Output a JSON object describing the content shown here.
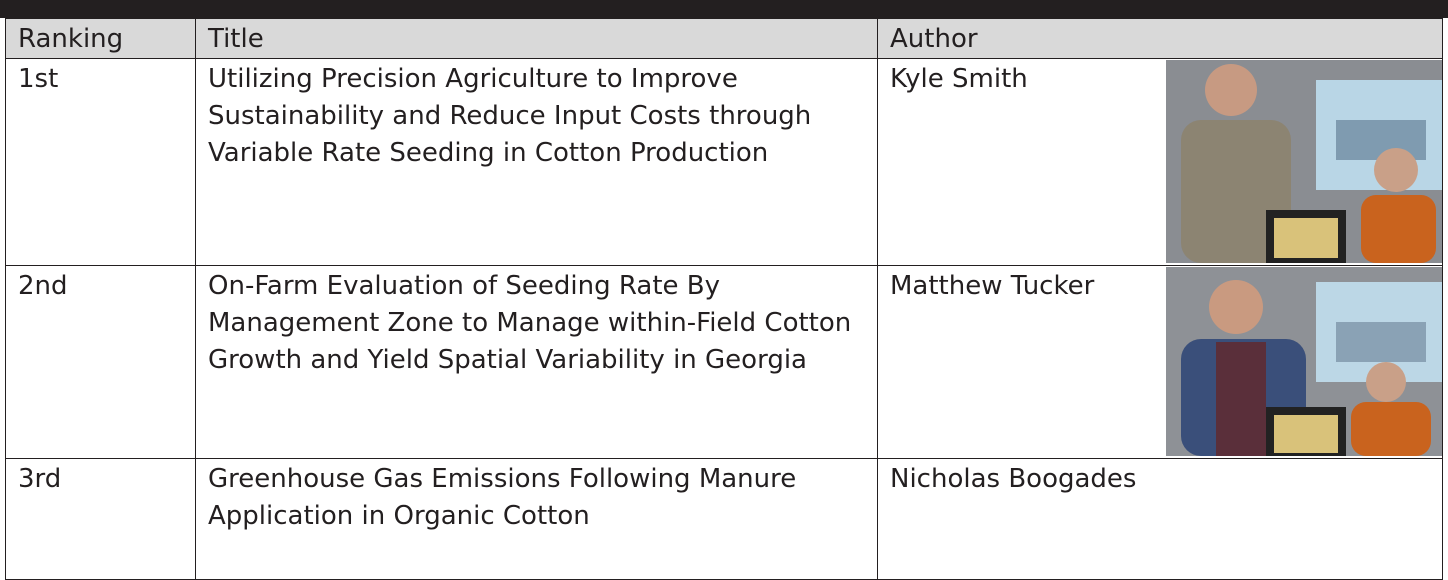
{
  "table": {
    "headers": [
      "Ranking",
      "Title",
      "Author"
    ],
    "rows": [
      [
        "1st",
        "Utilizing Precision Agriculture to Improve Sustainability and Reduce Input Costs through Variable Rate Seeding in Cotton Production",
        "Kyle Smith"
      ],
      [
        "2nd",
        "On-Farm Evaluation of Seeding Rate By Management Zone to Manage within-Field Cotton Growth and Yield Spatial Variability in Georgia",
        "Matthew Tucker"
      ],
      [
        "3rd",
        "Greenhouse Gas Emissions Following Manure Application in Organic Cotton",
        "Nicholas Boogades"
      ]
    ]
  }
}
